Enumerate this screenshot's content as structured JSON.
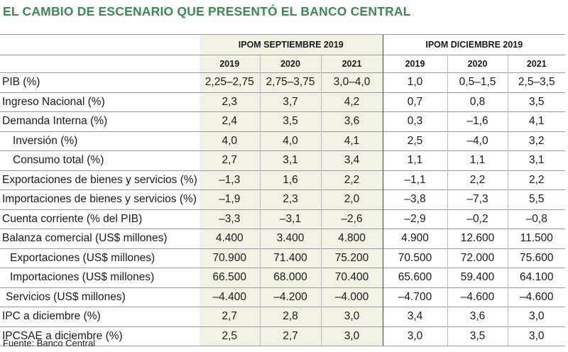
{
  "title": "EL CAMBIO DE ESCENARIO QUE PRESENTÓ EL BANCO CENTRAL",
  "groups": [
    "IPOM SEPTIEMBRE 2019",
    "IPOM DICIEMBRE 2019"
  ],
  "years": [
    "2019",
    "2020",
    "2021",
    "2019",
    "2020",
    "2021"
  ],
  "source": "Fuente: Banco Central",
  "colors": {
    "title": "#3a8a52",
    "highlight": "#f1f2e4"
  },
  "chart_data": {
    "type": "table",
    "columns": [
      "IPOM SEPTIEMBRE 2019 2019",
      "IPOM SEPTIEMBRE 2019 2020",
      "IPOM SEPTIEMBRE 2019 2021",
      "IPOM DICIEMBRE 2019 2019",
      "IPOM DICIEMBRE 2019 2020",
      "IPOM DICIEMBRE 2019 2021"
    ],
    "rows": [
      {
        "label": "PIB (%)",
        "indent": 0,
        "values": [
          "2,25–2,75",
          "2,75–3,75",
          "3,0–4,0",
          "1,0",
          "0,5–1,5",
          "2,5–3,5"
        ]
      },
      {
        "label": "Ingreso Nacional (%)",
        "indent": 0,
        "values": [
          "2,3",
          "3,7",
          "4,2",
          "0,7",
          "0,8",
          "3,5"
        ]
      },
      {
        "label": "Demanda Interna (%)",
        "indent": 0,
        "values": [
          "2,4",
          "3,5",
          "3,6",
          "0,3",
          "–1,6",
          "4,1"
        ]
      },
      {
        "label": "Inversión  (%)",
        "indent": 1,
        "values": [
          "4,0",
          "4,0",
          "4,1",
          "2,5",
          "–4,0",
          "3,2"
        ]
      },
      {
        "label": "Consumo total (%)",
        "indent": 1,
        "values": [
          "2,7",
          "3,1",
          "3,4",
          "1,1",
          "1,1",
          "3,1"
        ]
      },
      {
        "label": "Exportaciones de bienes y servicios (%)",
        "indent": 0,
        "values": [
          "–1,3",
          "1,6",
          "2,2",
          "–1,1",
          "2,2",
          "2,2"
        ]
      },
      {
        "label": "Importaciones de bienes y servicios  (%)",
        "indent": 0,
        "values": [
          "–1,9",
          "2,3",
          "2,0",
          "–3,8",
          "–7,3",
          "5,5"
        ]
      },
      {
        "label": "Cuenta corriente (% del PIB)",
        "indent": 0,
        "values": [
          "–3,3",
          "–3,1",
          "–2,6",
          "–2,9",
          "–0,2",
          "–0,8"
        ]
      },
      {
        "label": "Balanza comercial (US$ millones)",
        "indent": 0,
        "values": [
          "4.400",
          "3.400",
          "4.800",
          "4.900",
          "12.600",
          "11.500"
        ]
      },
      {
        "label": "Exportaciones (US$ millones)",
        "indent": 3,
        "values": [
          "70.900",
          "71.400",
          "75.200",
          "70.500",
          "72.000",
          "75.600"
        ]
      },
      {
        "label": "Importaciones (US$ millones)",
        "indent": 3,
        "values": [
          "66.500",
          "68.000",
          "70.400",
          "65.600",
          "59.400",
          "64.100"
        ]
      },
      {
        "label": "Servicios (US$ millones)",
        "indent": 2,
        "values": [
          "–4.400",
          "–4.200",
          "–4.000",
          "–4.700",
          "–4.600",
          "–4.600"
        ]
      },
      {
        "label": "IPC a diciembre (%)",
        "indent": 0,
        "values": [
          "2,7",
          "2,8",
          "3,0",
          "3,4",
          "3,6",
          "3,0"
        ]
      },
      {
        "label": "IPCSAE a diciembre (%)",
        "indent": 0,
        "values": [
          "2,5",
          "2,7",
          "3,0",
          "3,0",
          "3,5",
          "3,0"
        ]
      }
    ]
  }
}
